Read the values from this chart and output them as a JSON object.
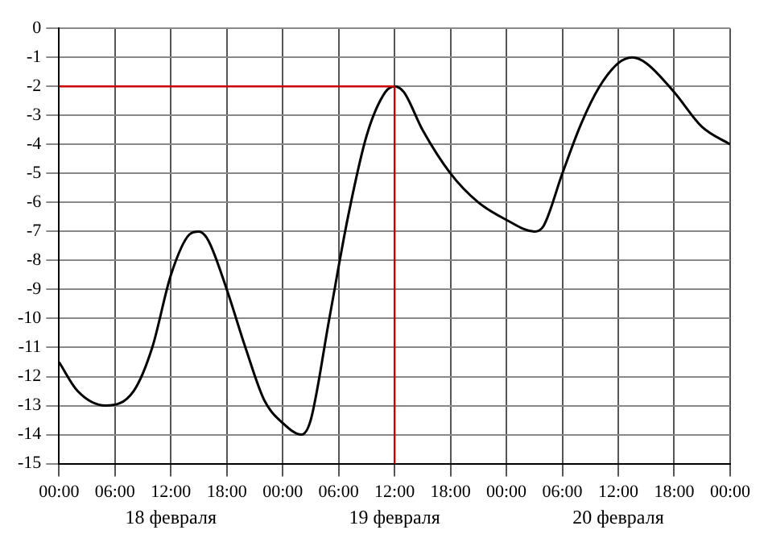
{
  "chart_data": {
    "type": "line",
    "x": [
      "--02-18T00:00",
      "--02-18T02:00",
      "--02-18T05:00",
      "--02-18T08:00",
      "--02-18T10:00",
      "--02-18T12:00",
      "--02-18T14:00",
      "--02-18T15:00",
      "--02-18T16:00",
      "--02-18T18:00",
      "--02-18T20:00",
      "--02-18T22:00",
      "--02-19T00:00",
      "--02-19T02:00",
      "--02-19T03:00",
      "--02-19T05:00",
      "--02-19T07:00",
      "--02-19T09:00",
      "--02-19T11:00",
      "--02-19T12:00",
      "--02-19T13:00",
      "--02-19T15:00",
      "--02-19T18:00",
      "--02-19T21:00",
      "--02-20T00:00",
      "--02-20T03:00",
      "--02-20T04:00",
      "--02-20T06:00",
      "--02-20T08:00",
      "--02-20T10:00",
      "--02-20T12:00",
      "--02-20T13:30",
      "--02-20T15:00",
      "--02-20T18:00",
      "--02-20T21:00",
      "--02-21T00:00"
    ],
    "series": [
      {
        "color": "#000000",
        "values": [
          -11.5,
          -12.5,
          -13,
          -12.5,
          -11,
          -8.5,
          -7.1,
          -7,
          -7.3,
          -9,
          -11,
          -12.8,
          -13.6,
          -14,
          -13.5,
          -10,
          -6.5,
          -3.7,
          -2.2,
          -2,
          -2.2,
          -3.5,
          -5,
          -6,
          -6.6,
          -7,
          -6.8,
          -5,
          -3.3,
          -2,
          -1.2,
          -1,
          -1.2,
          -2.2,
          -3.4,
          -4
        ]
      }
    ],
    "xlim": [
      "--02-18T00:00",
      "--02-21T00:00"
    ],
    "xticks": [
      {
        "value": "--02-18T00:00",
        "label": "00:00"
      },
      {
        "value": "--02-18T06:00",
        "label": "06:00"
      },
      {
        "value": "--02-18T12:00",
        "label": "12:00"
      },
      {
        "value": "--02-18T18:00",
        "label": "18:00"
      },
      {
        "value": "--02-19T00:00",
        "label": "00:00"
      },
      {
        "value": "--02-19T06:00",
        "label": "06:00"
      },
      {
        "value": "--02-19T12:00",
        "label": "12:00"
      },
      {
        "value": "--02-19T18:00",
        "label": "18:00"
      },
      {
        "value": "--02-20T00:00",
        "label": "00:00"
      },
      {
        "value": "--02-20T06:00",
        "label": "06:00"
      },
      {
        "value": "--02-20T12:00",
        "label": "12:00"
      },
      {
        "value": "--02-20T18:00",
        "label": "18:00"
      },
      {
        "value": "--02-21T00:00",
        "label": "00:00"
      }
    ],
    "ylim": [
      -15,
      0
    ],
    "yticks": [
      0,
      -1,
      -2,
      -3,
      -4,
      -5,
      -6,
      -7,
      -8,
      -9,
      -10,
      -11,
      -12,
      -13,
      -14,
      -15
    ],
    "annotations": [
      "18 февраля",
      "19 февраля",
      "20 февраля"
    ],
    "grid": true,
    "legend": false,
    "marker": "none",
    "line_style": "solid",
    "ref_lines": [
      {
        "axis": "y",
        "value": -2,
        "color": "#cc0000"
      },
      {
        "axis": "x",
        "value": "--02-19T12:00",
        "color": "#cc0000"
      }
    ]
  }
}
